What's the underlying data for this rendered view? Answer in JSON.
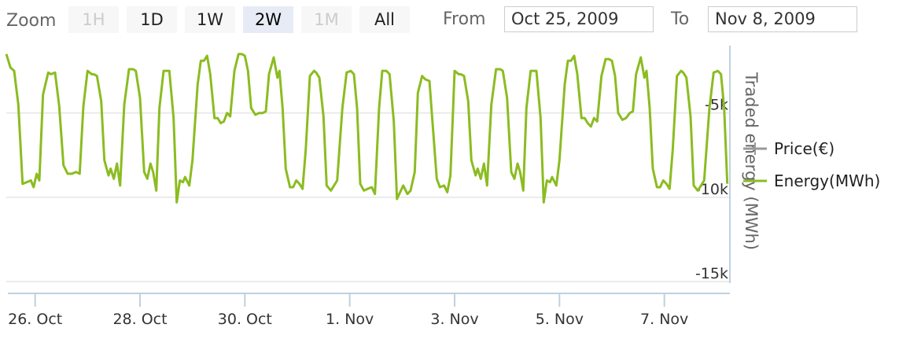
{
  "toolbar": {
    "zoom_label": "Zoom",
    "buttons": [
      {
        "label": "1H",
        "state": "disabled"
      },
      {
        "label": "1D",
        "state": "normal"
      },
      {
        "label": "1W",
        "state": "normal"
      },
      {
        "label": "2W",
        "state": "selected"
      },
      {
        "label": "1M",
        "state": "disabled"
      },
      {
        "label": "All",
        "state": "normal"
      }
    ],
    "from_label": "From",
    "from_value": "Oct 25, 2009",
    "to_label": "To",
    "to_value": "Nov 8, 2009"
  },
  "chart_data": {
    "type": "line",
    "x_start": "2009-10-25",
    "x_range_days": [
      0.45,
      14.25
    ],
    "ylim": [
      -15000,
      -1000
    ],
    "ylabel": "Traded energy (MWh)",
    "y_ticks": [
      {
        "value": -5000,
        "label": "-5k"
      },
      {
        "value": -10000,
        "label": "-10k"
      },
      {
        "value": -15000,
        "label": "-15k"
      }
    ],
    "x_ticks": [
      {
        "day": 1,
        "label": "26. Oct"
      },
      {
        "day": 3,
        "label": "28. Oct"
      },
      {
        "day": 5,
        "label": "30. Oct"
      },
      {
        "day": 7,
        "label": "1. Nov"
      },
      {
        "day": 9,
        "label": "3. Nov"
      },
      {
        "day": 11,
        "label": "5. Nov"
      },
      {
        "day": 13,
        "label": "7. Nov"
      }
    ],
    "grid": true,
    "legend_position": "right",
    "series": [
      {
        "name": "Price(€)",
        "color": "#999999",
        "values": []
      },
      {
        "name": "Energy(MWh)",
        "color": "#8bbc21",
        "points": [
          [
            0.45,
            -1500
          ],
          [
            0.53,
            -2300
          ],
          [
            0.6,
            -2500
          ],
          [
            0.68,
            -4500
          ],
          [
            0.76,
            -9200
          ],
          [
            0.84,
            -9100
          ],
          [
            0.92,
            -9000
          ],
          [
            0.97,
            -9400
          ],
          [
            1.03,
            -8600
          ],
          [
            1.08,
            -9000
          ],
          [
            1.15,
            -3900
          ],
          [
            1.25,
            -2600
          ],
          [
            1.3,
            -2700
          ],
          [
            1.38,
            -2600
          ],
          [
            1.46,
            -4600
          ],
          [
            1.54,
            -8100
          ],
          [
            1.62,
            -8600
          ],
          [
            1.7,
            -8600
          ],
          [
            1.78,
            -8500
          ],
          [
            1.85,
            -8600
          ],
          [
            1.92,
            -4600
          ],
          [
            2.0,
            -2500
          ],
          [
            2.08,
            -2700
          ],
          [
            2.12,
            -2700
          ],
          [
            2.18,
            -2800
          ],
          [
            2.26,
            -4300
          ],
          [
            2.32,
            -7800
          ],
          [
            2.4,
            -8700
          ],
          [
            2.44,
            -8300
          ],
          [
            2.5,
            -8900
          ],
          [
            2.56,
            -8000
          ],
          [
            2.62,
            -9300
          ],
          [
            2.7,
            -4500
          ],
          [
            2.79,
            -2400
          ],
          [
            2.87,
            -2400
          ],
          [
            2.92,
            -2500
          ],
          [
            3.0,
            -4100
          ],
          [
            3.08,
            -8500
          ],
          [
            3.14,
            -8900
          ],
          [
            3.2,
            -8000
          ],
          [
            3.25,
            -8500
          ],
          [
            3.31,
            -9600
          ],
          [
            3.37,
            -4700
          ],
          [
            3.45,
            -2500
          ],
          [
            3.51,
            -2500
          ],
          [
            3.56,
            -2500
          ],
          [
            3.64,
            -5300
          ],
          [
            3.7,
            -10300
          ],
          [
            3.76,
            -9000
          ],
          [
            3.82,
            -9100
          ],
          [
            3.86,
            -8800
          ],
          [
            3.94,
            -9300
          ],
          [
            4.0,
            -7800
          ],
          [
            4.1,
            -3300
          ],
          [
            4.16,
            -1900
          ],
          [
            4.22,
            -1900
          ],
          [
            4.28,
            -1600
          ],
          [
            4.34,
            -2700
          ],
          [
            4.42,
            -5300
          ],
          [
            4.48,
            -5300
          ],
          [
            4.54,
            -5600
          ],
          [
            4.6,
            -5500
          ],
          [
            4.66,
            -5000
          ],
          [
            4.72,
            -5200
          ],
          [
            4.8,
            -2500
          ],
          [
            4.88,
            -1500
          ],
          [
            4.94,
            -1500
          ],
          [
            5.0,
            -1600
          ],
          [
            5.06,
            -2500
          ],
          [
            5.12,
            -4700
          ],
          [
            5.2,
            -5100
          ],
          [
            5.27,
            -5000
          ],
          [
            5.34,
            -5000
          ],
          [
            5.4,
            -4900
          ],
          [
            5.46,
            -2700
          ],
          [
            5.55,
            -1700
          ],
          [
            5.62,
            -2900
          ],
          [
            5.66,
            -2500
          ],
          [
            5.72,
            -4700
          ],
          [
            5.78,
            -8300
          ],
          [
            5.86,
            -9400
          ],
          [
            5.92,
            -9400
          ],
          [
            5.98,
            -9000
          ],
          [
            6.04,
            -9200
          ],
          [
            6.1,
            -9500
          ],
          [
            6.16,
            -7200
          ],
          [
            6.24,
            -2800
          ],
          [
            6.32,
            -2500
          ],
          [
            6.36,
            -2600
          ],
          [
            6.42,
            -2900
          ],
          [
            6.5,
            -5200
          ],
          [
            6.56,
            -9300
          ],
          [
            6.64,
            -9600
          ],
          [
            6.7,
            -9300
          ],
          [
            6.76,
            -9000
          ],
          [
            6.86,
            -4700
          ],
          [
            6.94,
            -2600
          ],
          [
            7.02,
            -2500
          ],
          [
            7.08,
            -2700
          ],
          [
            7.14,
            -4700
          ],
          [
            7.2,
            -9200
          ],
          [
            7.27,
            -9600
          ],
          [
            7.34,
            -9500
          ],
          [
            7.42,
            -9400
          ],
          [
            7.48,
            -9800
          ],
          [
            7.56,
            -4700
          ],
          [
            7.62,
            -2500
          ],
          [
            7.7,
            -2500
          ],
          [
            7.76,
            -2700
          ],
          [
            7.84,
            -5500
          ],
          [
            7.9,
            -10100
          ],
          [
            7.96,
            -9700
          ],
          [
            8.02,
            -9300
          ],
          [
            8.1,
            -9800
          ],
          [
            8.16,
            -9600
          ],
          [
            8.24,
            -8500
          ],
          [
            8.3,
            -3800
          ],
          [
            8.38,
            -2800
          ],
          [
            8.44,
            -3000
          ],
          [
            8.52,
            -3100
          ],
          [
            8.58,
            -5600
          ],
          [
            8.66,
            -8900
          ],
          [
            8.72,
            -9400
          ],
          [
            8.8,
            -9300
          ],
          [
            8.86,
            -9700
          ],
          [
            8.92,
            -8700
          ]
        ]
      }
    ]
  }
}
